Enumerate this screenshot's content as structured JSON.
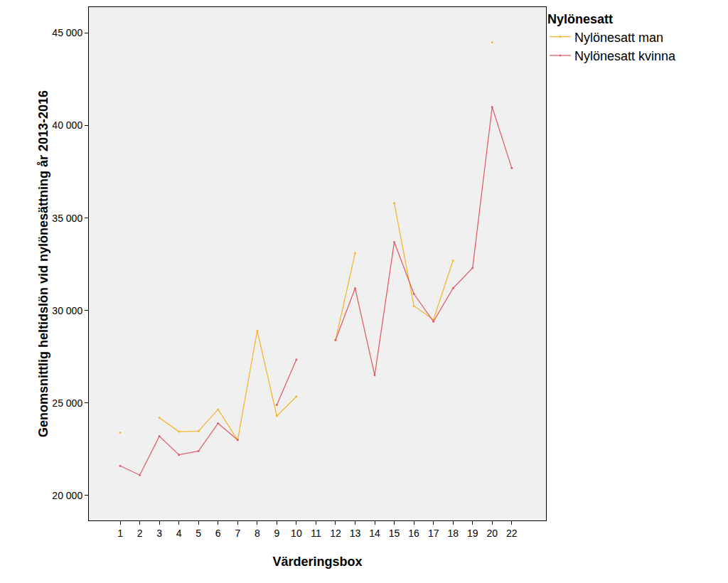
{
  "chart_data": {
    "type": "line",
    "x_label": "Värderingsbox",
    "y_label": "Genomsnittlig heltidslön vid nylönesättning år 2013-2016",
    "legend_title": "Nylönesatt",
    "legend": "top right",
    "grid": false,
    "categories": [
      "1",
      "2",
      "3",
      "4",
      "5",
      "6",
      "7",
      "8",
      "9",
      "10",
      "11",
      "12",
      "13",
      "14",
      "15",
      "16",
      "17",
      "18",
      "19",
      "20",
      "22"
    ],
    "series": [
      {
        "name": "Nylönesatt man",
        "color": "#f5b731",
        "values": [
          23400,
          null,
          24200,
          23450,
          23480,
          24650,
          23000,
          28900,
          24300,
          25350,
          null,
          28400,
          33100,
          null,
          35800,
          30250,
          29500,
          32700,
          null,
          44500,
          null
        ]
      },
      {
        "name": "Nylönesatt kvinna",
        "color": "#e0606a",
        "values": [
          21600,
          21100,
          23200,
          22200,
          22400,
          23900,
          23000,
          null,
          24900,
          27350,
          null,
          28400,
          31200,
          26500,
          33700,
          30900,
          29400,
          31200,
          32300,
          41000,
          37700
        ]
      }
    ],
    "ylim": [
      18650,
      46400
    ],
    "yticks": [
      {
        "value": 20000,
        "label": "20 000"
      },
      {
        "value": 25000,
        "label": "25 000"
      },
      {
        "value": 30000,
        "label": "30 000"
      },
      {
        "value": 35000,
        "label": "35 000"
      },
      {
        "value": 40000,
        "label": "40 000"
      },
      {
        "value": 45000,
        "label": "45 000"
      }
    ]
  }
}
